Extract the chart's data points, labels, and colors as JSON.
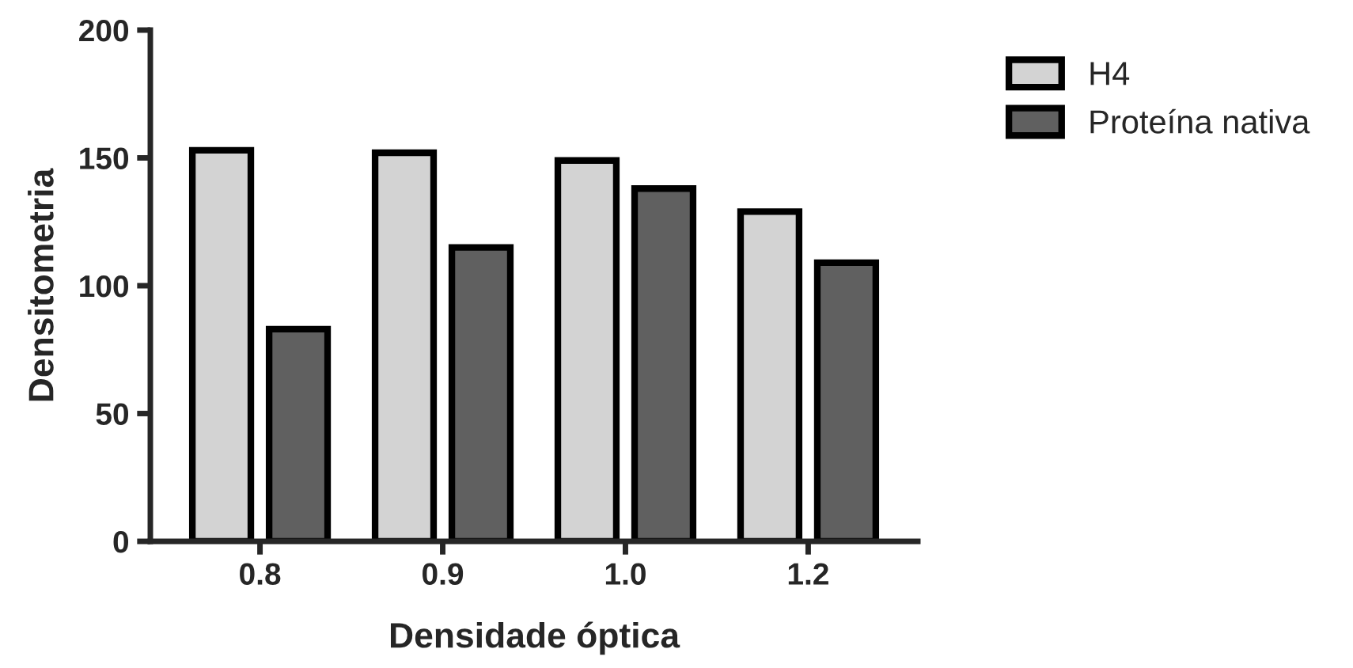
{
  "chart_data": {
    "type": "bar",
    "xlabel": "Densidade óptica",
    "ylabel": "Densitometria",
    "categories": [
      "0.8",
      "0.9",
      "1.0",
      "1.2"
    ],
    "series": [
      {
        "name": "H4",
        "color": "#d3d3d3",
        "values": [
          153,
          152,
          149,
          129
        ]
      },
      {
        "name": "Proteína nativa",
        "color": "#606060",
        "values": [
          83,
          115,
          138,
          109
        ]
      }
    ],
    "ylim": [
      0,
      200
    ],
    "yticks": [
      0,
      50,
      100,
      150,
      200
    ],
    "grid": false,
    "legend": "top right"
  }
}
